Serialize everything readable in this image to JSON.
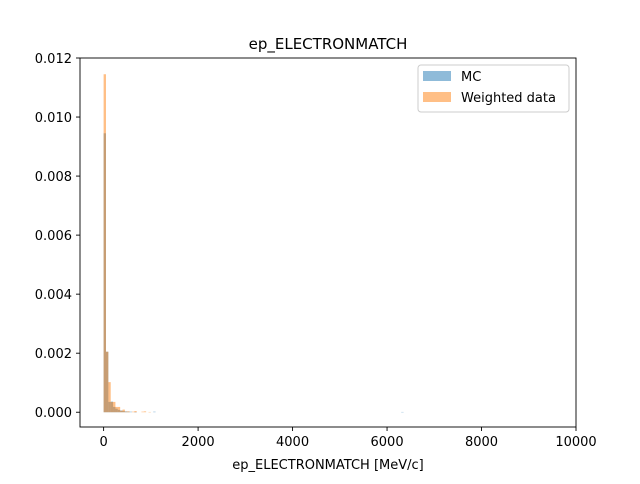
{
  "chart_data": {
    "type": "histogram",
    "title": "ep_ELECTRONMATCH",
    "xlabel": "ep_ELECTRONMATCH [MeV/c]",
    "ylabel": "",
    "xlim": [
      -500,
      10000
    ],
    "ylim": [
      -0.0005,
      0.012
    ],
    "xticks": [
      0,
      2000,
      4000,
      6000,
      8000,
      10000
    ],
    "xtick_labels": [
      "0",
      "2000",
      "4000",
      "6000",
      "8000",
      "10000"
    ],
    "yticks": [
      0.0,
      0.002,
      0.004,
      0.006,
      0.008,
      0.01,
      0.012
    ],
    "ytick_labels": [
      "0.000",
      "0.002",
      "0.004",
      "0.006",
      "0.008",
      "0.010",
      "0.012"
    ],
    "grid": false,
    "legend_position": "top-right",
    "alpha": 0.5,
    "series": [
      {
        "name": "MC",
        "color": "#1f77b4",
        "bins": [
          {
            "x0": 0,
            "x1": 50,
            "y": 0.00945
          },
          {
            "x0": 50,
            "x1": 100,
            "y": 0.00205
          },
          {
            "x0": 100,
            "x1": 150,
            "y": 0.00035
          },
          {
            "x0": 150,
            "x1": 200,
            "y": 0.00036
          },
          {
            "x0": 200,
            "x1": 250,
            "y": 0.00018
          },
          {
            "x0": 250,
            "x1": 300,
            "y": 0.00012
          },
          {
            "x0": 300,
            "x1": 350,
            "y": 8e-05
          },
          {
            "x0": 350,
            "x1": 400,
            "y": 6e-05
          },
          {
            "x0": 400,
            "x1": 450,
            "y": 4e-05
          },
          {
            "x0": 450,
            "x1": 500,
            "y": 3e-05
          },
          {
            "x0": 500,
            "x1": 550,
            "y": 2e-05
          },
          {
            "x0": 550,
            "x1": 600,
            "y": 2e-05
          },
          {
            "x0": 650,
            "x1": 700,
            "y": 1e-05
          },
          {
            "x0": 1050,
            "x1": 1100,
            "y": 2e-05
          },
          {
            "x0": 6300,
            "x1": 6350,
            "y": 1e-05
          }
        ]
      },
      {
        "name": "Weighted data",
        "color": "#ff7f0e",
        "bins": [
          {
            "x0": 0,
            "x1": 50,
            "y": 0.01145
          },
          {
            "x0": 50,
            "x1": 100,
            "y": 0.00205
          },
          {
            "x0": 100,
            "x1": 150,
            "y": 0.00102
          },
          {
            "x0": 150,
            "x1": 200,
            "y": 0.00035
          },
          {
            "x0": 200,
            "x1": 250,
            "y": 0.00035
          },
          {
            "x0": 250,
            "x1": 300,
            "y": 0.00018
          },
          {
            "x0": 300,
            "x1": 350,
            "y": 0.00018
          },
          {
            "x0": 350,
            "x1": 400,
            "y": 5e-05
          },
          {
            "x0": 400,
            "x1": 450,
            "y": 9e-05
          },
          {
            "x0": 450,
            "x1": 500,
            "y": 2e-05
          },
          {
            "x0": 500,
            "x1": 550,
            "y": 3e-05
          },
          {
            "x0": 600,
            "x1": 650,
            "y": 2e-05
          },
          {
            "x0": 650,
            "x1": 700,
            "y": 4e-05
          },
          {
            "x0": 800,
            "x1": 850,
            "y": 2e-05
          },
          {
            "x0": 850,
            "x1": 900,
            "y": 3e-05
          },
          {
            "x0": 950,
            "x1": 1000,
            "y": 1e-05
          }
        ]
      }
    ]
  }
}
